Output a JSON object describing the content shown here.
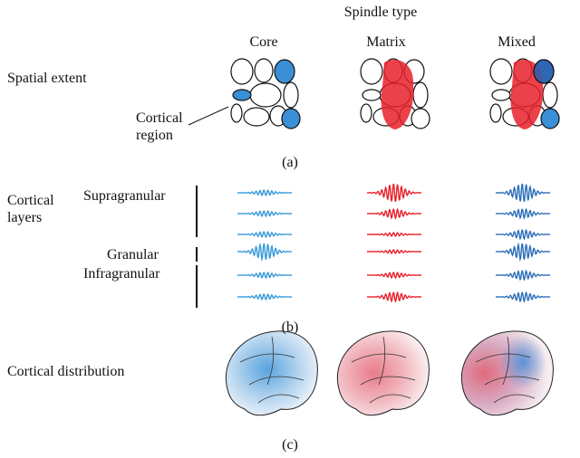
{
  "header": {
    "title": "Spindle type",
    "columns": [
      "Core",
      "Matrix",
      "Mixed"
    ]
  },
  "panel_a": {
    "label": "Spatial extent",
    "annotation": "Cortical region",
    "caption": "(a)"
  },
  "panel_b": {
    "label": "Cortical layers",
    "layers": [
      "Supragranular",
      "Granular",
      "Infragranular"
    ],
    "caption": "(b)"
  },
  "panel_c": {
    "label": "Cortical distribution",
    "caption": "(c)"
  }
}
